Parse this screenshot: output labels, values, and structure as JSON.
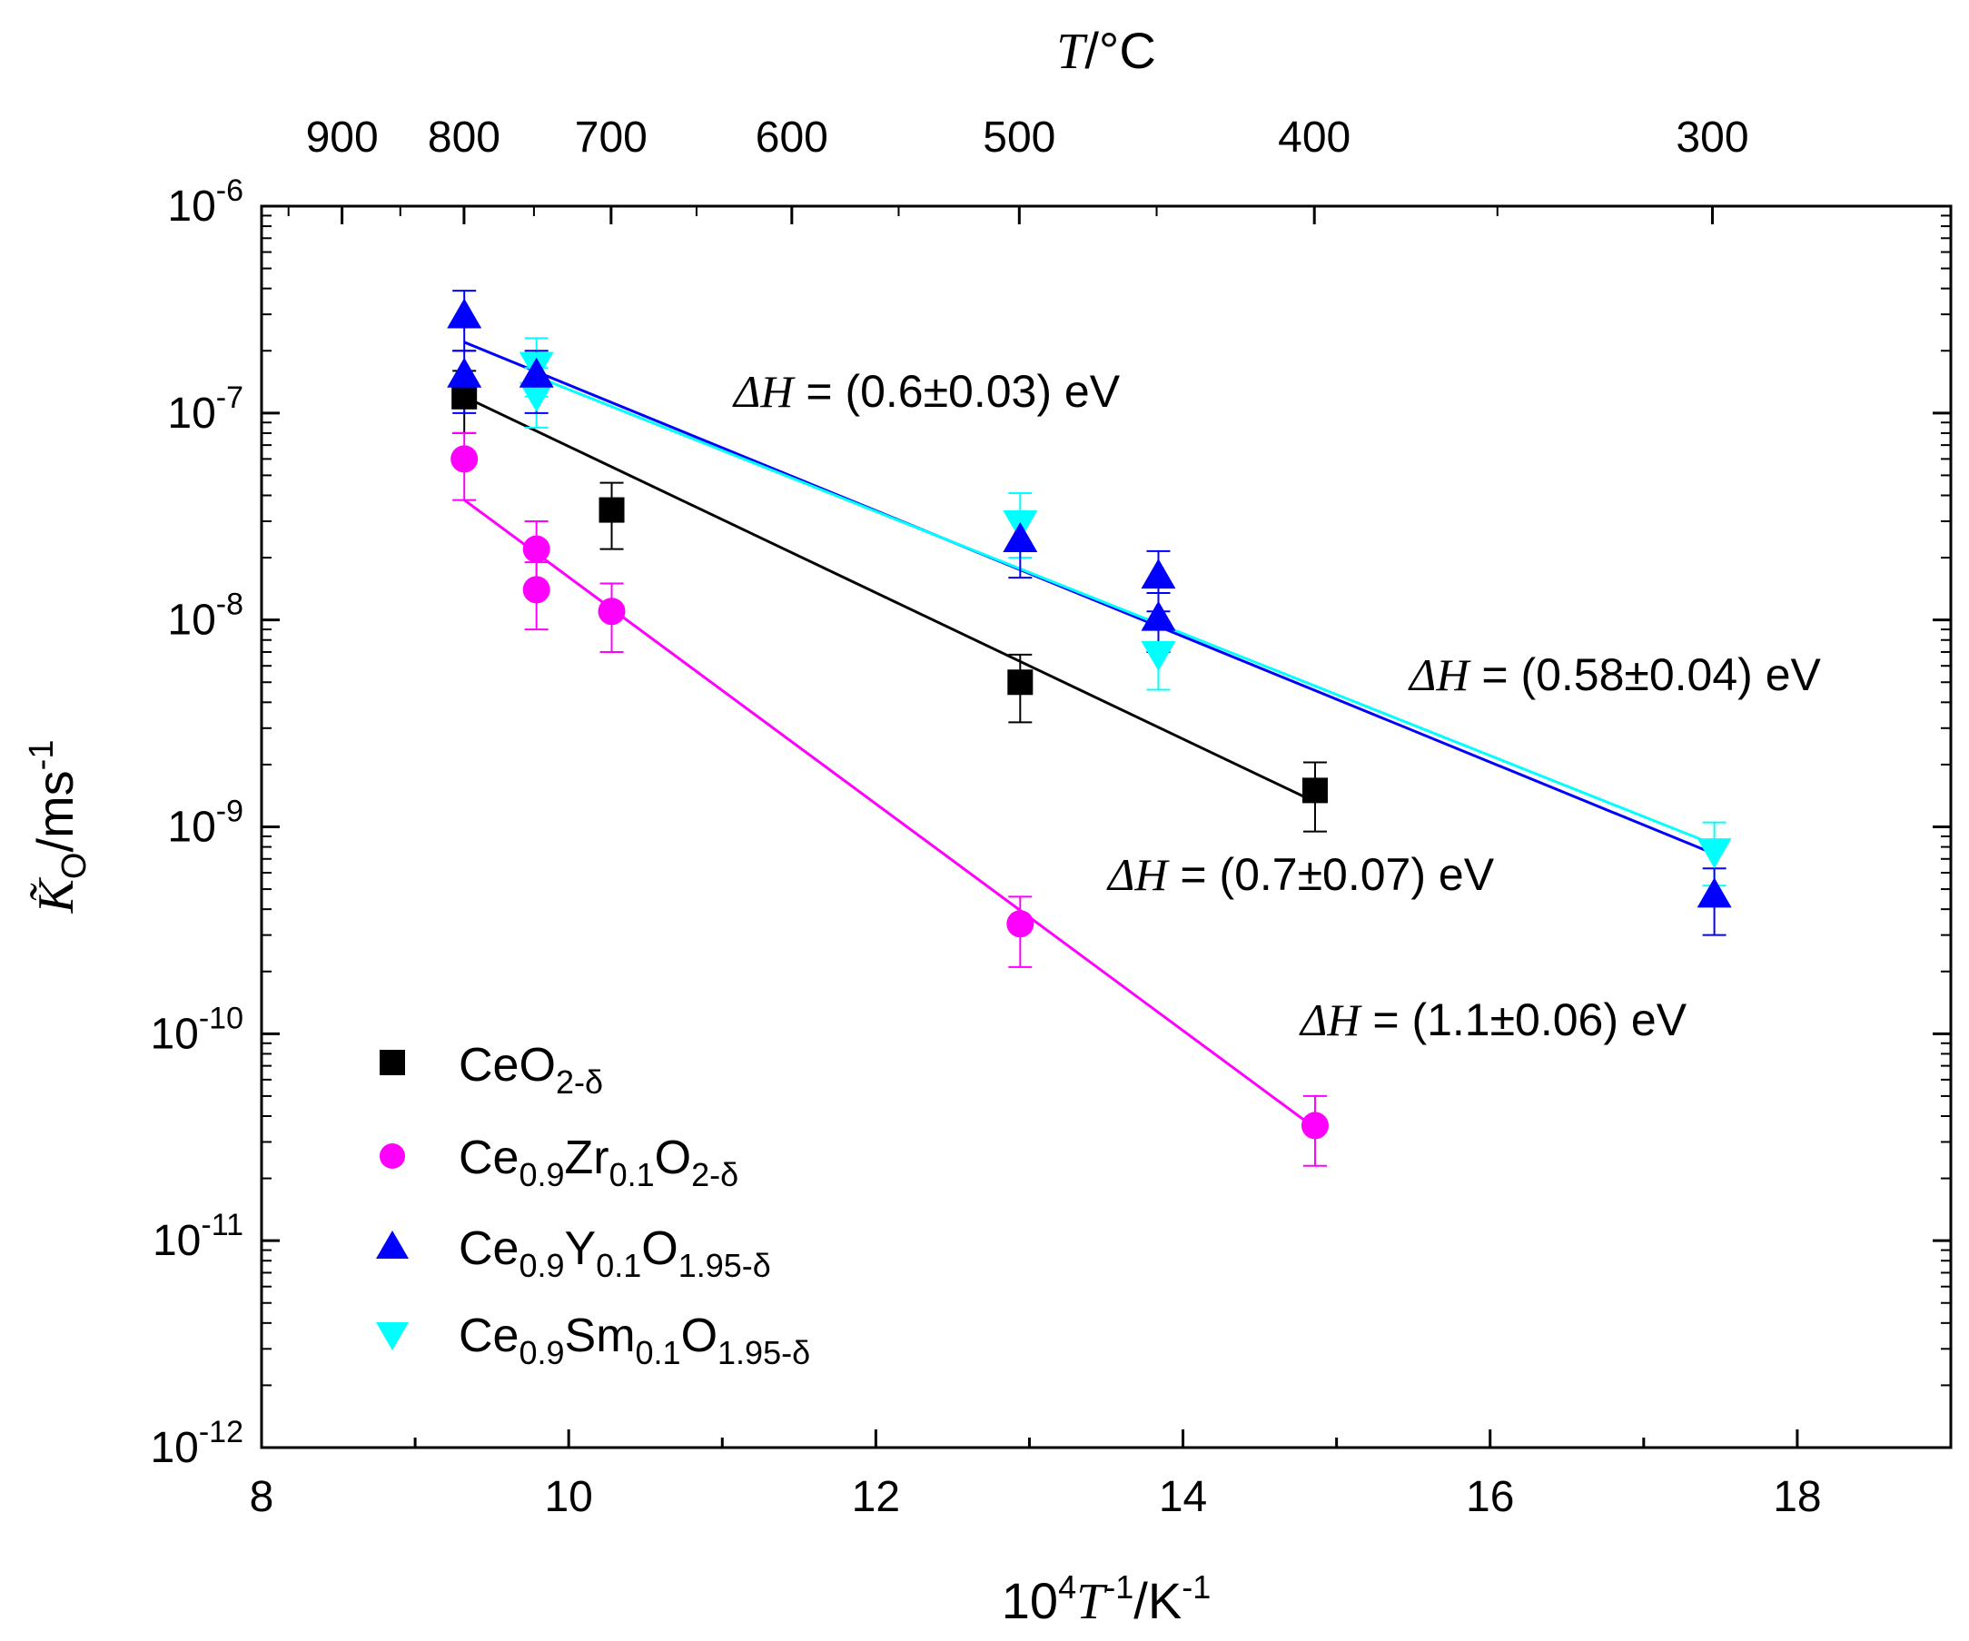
{
  "chart_data": {
    "type": "scatter",
    "xlabel": "10⁴T⁻¹/K⁻¹",
    "xlabel_parts": {
      "base": "10",
      "exp1": "4",
      "var": "T",
      "exp2": "-1",
      "unit": "/K",
      "exp3": "-1"
    },
    "ylabel": "K̃O/ms⁻¹",
    "ylabel_parts": {
      "var": "K̃",
      "sub": "O",
      "unit": "/ms",
      "exp": "-1"
    },
    "top_xlabel": "T/°C",
    "top_xlabel_parts": {
      "var": "T",
      "unit": "/°C"
    },
    "xlim": [
      8,
      19
    ],
    "ylim_log10": [
      -12,
      -6
    ],
    "x_ticks": [
      8,
      10,
      12,
      14,
      16,
      18
    ],
    "x_tick_labels": [
      "8",
      "10",
      "12",
      "14",
      "16",
      "18"
    ],
    "y_tick_exponents": [
      -12,
      -11,
      -10,
      -9,
      -8,
      -7,
      -6
    ],
    "y_tick_base": "10",
    "top_ticks_celsius": [
      900,
      800,
      700,
      600,
      500,
      400,
      300
    ],
    "top_tick_labels": [
      "900",
      "800",
      "700",
      "600",
      "500",
      "400",
      "300"
    ],
    "series": [
      {
        "name": "CeO2-δ",
        "legend": {
          "parts": [
            "Ce",
            "O",
            "2-δ"
          ]
        },
        "color": "#000000",
        "marker": "square",
        "x": [
          9.32,
          10.28,
          12.94,
          14.86
        ],
        "y": [
          1.2e-07,
          3.4e-08,
          5e-09,
          1.5e-09
        ],
        "err_lo": [
          8e-08,
          2.2e-08,
          3.2e-09,
          9.5e-10
        ],
        "err_hi": [
          1.6e-07,
          4.6e-08,
          6.8e-09,
          2.05e-09
        ],
        "fit": {
          "x": [
            9.32,
            14.86
          ],
          "y": [
            1.2e-07,
            1.32e-09
          ]
        }
      },
      {
        "name": "Ce0.9Zr0.1O2-δ",
        "legend": {
          "parts": [
            "Ce",
            "0.9",
            "Zr",
            "0.1",
            "O",
            "2-δ"
          ]
        },
        "color": "#ff00ff",
        "marker": "circle",
        "x": [
          9.32,
          9.79,
          9.79,
          10.28,
          12.94,
          14.86
        ],
        "y": [
          6e-08,
          2.2e-08,
          1.4e-08,
          1.1e-08,
          3.4e-10,
          3.6e-11
        ],
        "err_lo": [
          3.8e-08,
          1.4e-08,
          9e-09,
          7e-09,
          2.1e-10,
          2.3e-11
        ],
        "err_hi": [
          8e-08,
          3e-08,
          1.9e-08,
          1.5e-08,
          4.6e-10,
          5e-11
        ],
        "fit": {
          "x": [
            9.32,
            14.86
          ],
          "y": [
            3.8e-08,
            3.5e-11
          ]
        }
      },
      {
        "name": "Ce0.9Y0.1O1.95-δ",
        "legend": {
          "parts": [
            "Ce",
            "0.9",
            "Y",
            "0.1",
            "O",
            "1.95-δ"
          ]
        },
        "color": "#0000ff",
        "marker": "triangle-up",
        "x": [
          9.32,
          9.32,
          9.79,
          12.94,
          13.84,
          13.84,
          17.46
        ],
        "y": [
          2.9e-07,
          1.5e-07,
          1.5e-07,
          2.4e-08,
          1.6e-08,
          1e-08,
          4.6e-10
        ],
        "err_lo": [
          2e-07,
          1e-07,
          1e-07,
          1.6e-08,
          1.1e-08,
          7e-09,
          3e-10
        ],
        "err_hi": [
          3.9e-07,
          2e-07,
          2e-07,
          3.2e-08,
          2.15e-08,
          1.35e-08,
          6.3e-10
        ],
        "fit": {
          "x": [
            9.32,
            17.46
          ],
          "y": [
            2.2e-07,
            7.4e-10
          ]
        }
      },
      {
        "name": "Ce0.9Sm0.1O1.95-δ",
        "legend": {
          "parts": [
            "Ce",
            "0.9",
            "Sm",
            "0.1",
            "O",
            "1.95-δ"
          ]
        },
        "color": "#00ffff",
        "marker": "triangle-down",
        "x": [
          9.79,
          9.79,
          12.94,
          13.84,
          17.46
        ],
        "y": [
          1.75e-07,
          1.25e-07,
          3e-08,
          7e-09,
          7.8e-10
        ],
        "err_lo": [
          1.2e-07,
          8.5e-08,
          2e-08,
          4.6e-09,
          5.2e-10
        ],
        "err_hi": [
          2.3e-07,
          1.65e-07,
          4.1e-08,
          9.5e-09,
          1.05e-09
        ],
        "fit": {
          "x": [
            9.79,
            17.46
          ],
          "y": [
            1.5e-07,
            8.2e-10
          ]
        }
      }
    ],
    "annotations": [
      {
        "var": "ΔH",
        "text": " = (0.6±0.03) eV",
        "color": "#1a1aff",
        "position": "upper-middle"
      },
      {
        "var": "ΔH",
        "text": " = (0.58±0.04) eV",
        "color": "#00ffff",
        "position": "right"
      },
      {
        "var": "ΔH",
        "text": " = (0.7±0.07) eV",
        "color": "#000000",
        "position": "center"
      },
      {
        "var": "ΔH",
        "text": " = (1.1±0.06) eV",
        "color": "#ff00ff",
        "position": "lower-right"
      }
    ],
    "legend_position": "lower-left"
  }
}
